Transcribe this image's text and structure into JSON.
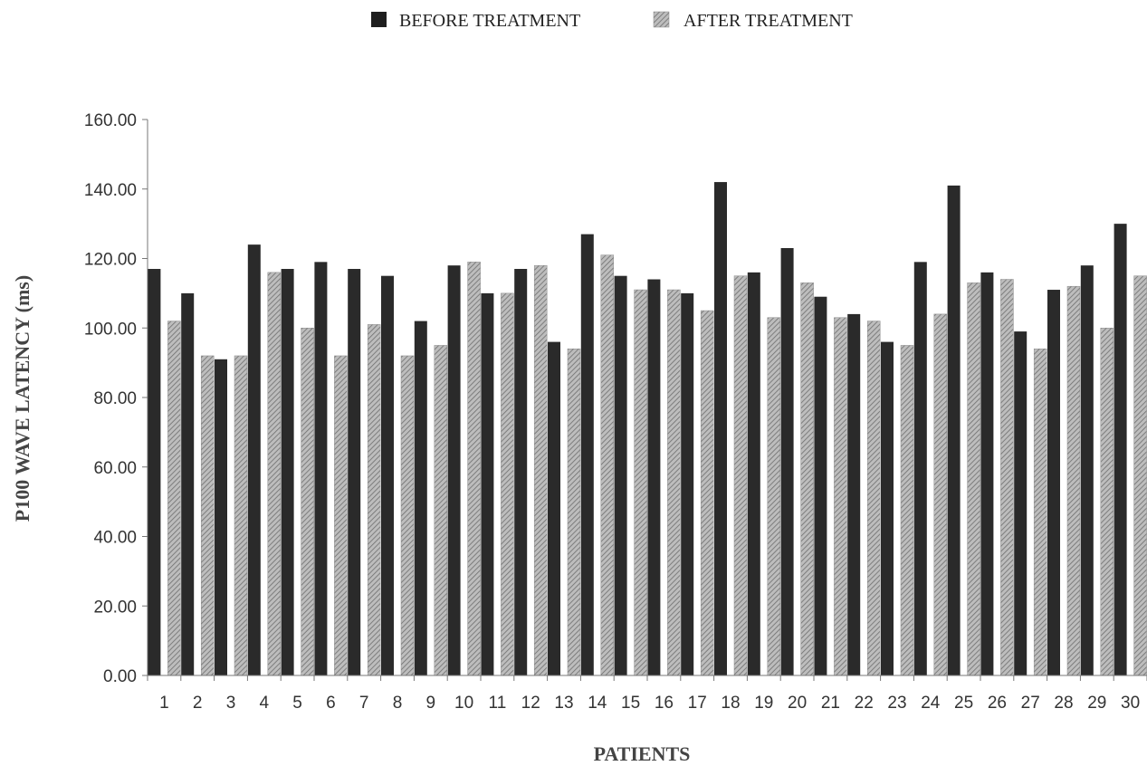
{
  "chart_data": {
    "type": "bar",
    "title": "",
    "xlabel": "PATIENTS",
    "ylabel": "P100 WAVE LATENCY (ms)",
    "ylim": [
      0,
      160
    ],
    "yticks": [
      "0.00",
      "20.00",
      "40.00",
      "60.00",
      "80.00",
      "100.00",
      "120.00",
      "140.00",
      "160.00"
    ],
    "grid": false,
    "legend_position": "top",
    "categories": [
      "1",
      "2",
      "3",
      "4",
      "5",
      "6",
      "7",
      "8",
      "9",
      "10",
      "11",
      "12",
      "13",
      "14",
      "15",
      "16",
      "17",
      "18",
      "19",
      "20",
      "21",
      "22",
      "23",
      "24",
      "25",
      "26",
      "27",
      "28",
      "29",
      "30"
    ],
    "series": [
      {
        "name": "BEFORE TREATMENT",
        "color": "#2b2b2b",
        "values": [
          117,
          110,
          91,
          124,
          117,
          119,
          117,
          115,
          102,
          118,
          110,
          117,
          96,
          127,
          115,
          114,
          110,
          142,
          116,
          123,
          109,
          104,
          96,
          119,
          141,
          116,
          99,
          111,
          118,
          130
        ]
      },
      {
        "name": "AFTER TREATMENT",
        "color": "#a9a9a9",
        "values": [
          102,
          92,
          92,
          116,
          100,
          92,
          101,
          92,
          95,
          119,
          110,
          118,
          94,
          121,
          111,
          111,
          105,
          115,
          103,
          113,
          103,
          102,
          95,
          104,
          113,
          114,
          94,
          112,
          100,
          115
        ]
      }
    ]
  }
}
